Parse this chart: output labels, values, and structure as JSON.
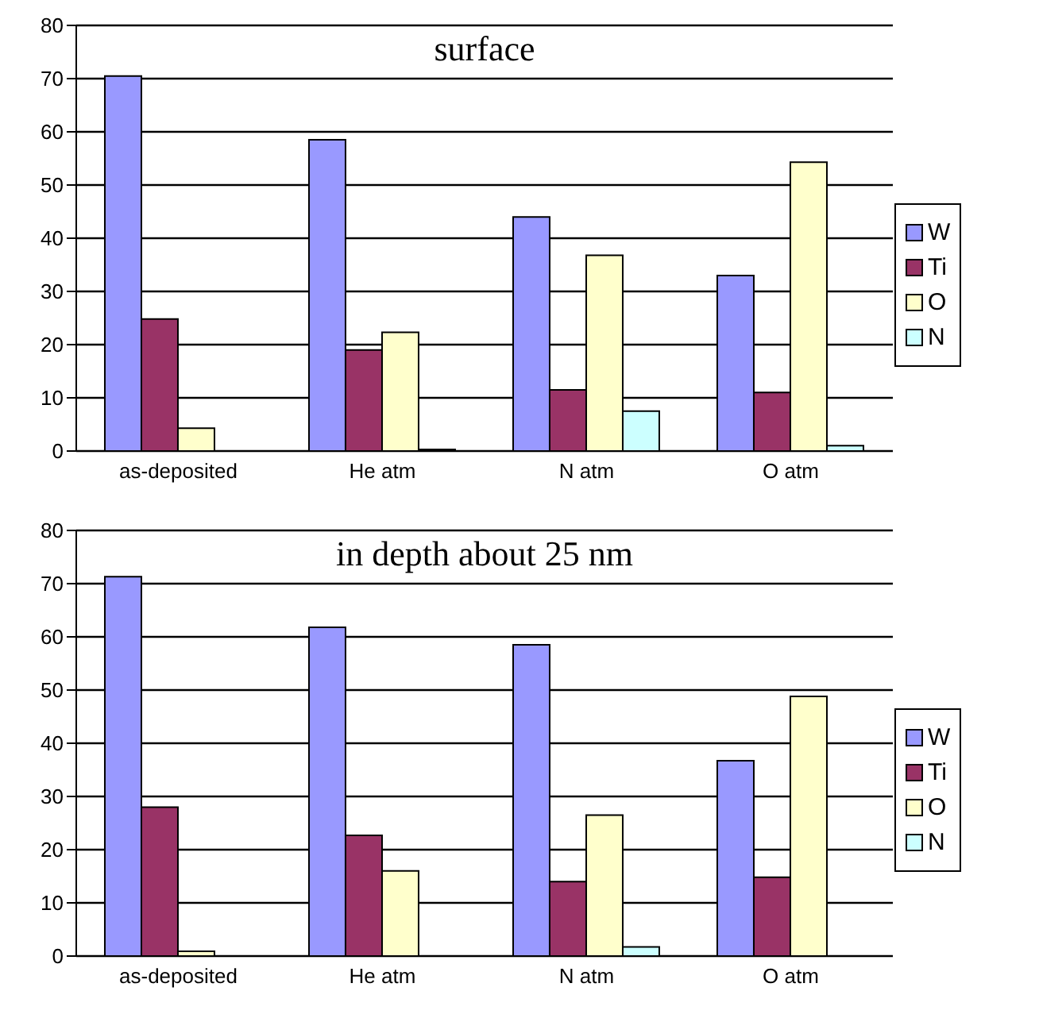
{
  "chart_data": [
    {
      "type": "bar",
      "title": "surface",
      "categories": [
        "as-deposited",
        "He atm",
        "N atm",
        "O atm"
      ],
      "series": [
        {
          "name": "W",
          "color": "#9999ff",
          "values": [
            70.5,
            58.5,
            44,
            33
          ]
        },
        {
          "name": "Ti",
          "color": "#993366",
          "values": [
            24.8,
            19,
            11.5,
            11
          ]
        },
        {
          "name": "O",
          "color": "#ffffcc",
          "values": [
            4.3,
            22.3,
            36.8,
            54.3
          ]
        },
        {
          "name": "N",
          "color": "#ccffff",
          "values": [
            0,
            0.3,
            7.5,
            1
          ]
        }
      ],
      "ylim": [
        0,
        80
      ],
      "yticks": [
        0,
        10,
        20,
        30,
        40,
        50,
        60,
        70,
        80
      ],
      "grid": "y",
      "legend": "right"
    },
    {
      "type": "bar",
      "title": "in depth about 25 nm",
      "categories": [
        "as-deposited",
        "He atm",
        "N atm",
        "O atm"
      ],
      "series": [
        {
          "name": "W",
          "color": "#9999ff",
          "values": [
            71.3,
            61.8,
            58.5,
            36.7
          ]
        },
        {
          "name": "Ti",
          "color": "#993366",
          "values": [
            28,
            22.7,
            14,
            14.8
          ]
        },
        {
          "name": "O",
          "color": "#ffffcc",
          "values": [
            0.9,
            16,
            26.5,
            48.8
          ]
        },
        {
          "name": "N",
          "color": "#ccffff",
          "values": [
            0,
            0,
            1.7,
            0
          ]
        }
      ],
      "ylim": [
        0,
        80
      ],
      "yticks": [
        0,
        10,
        20,
        30,
        40,
        50,
        60,
        70,
        80
      ],
      "grid": "y",
      "legend": "right"
    }
  ]
}
